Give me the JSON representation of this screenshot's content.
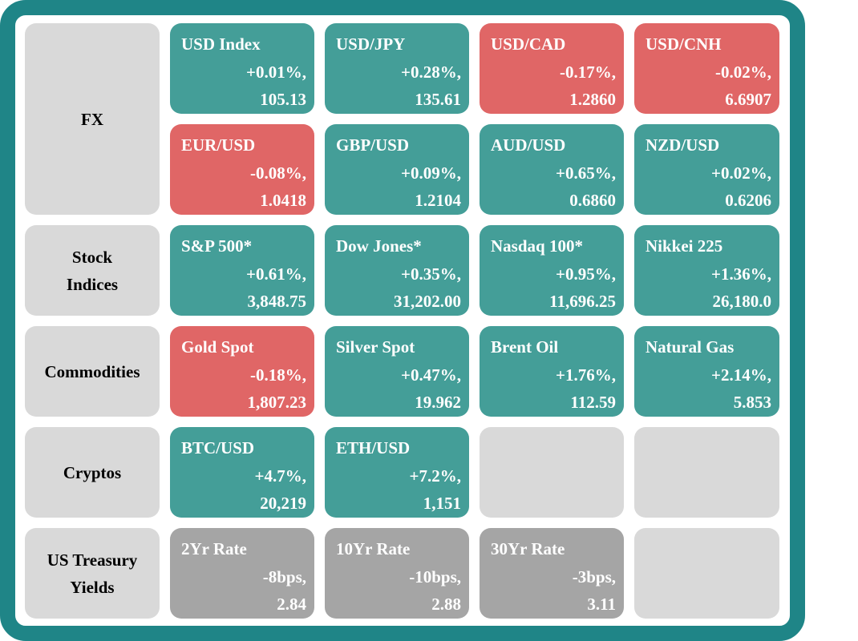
{
  "colors": {
    "frame": "#1f8587",
    "positive": "#449e98",
    "negative": "#e06666",
    "neutral": "#a5a5a5",
    "label_bg": "#d9d9d9"
  },
  "rows": [
    {
      "label_lines": [
        "FX"
      ]
    },
    {
      "label_lines": [
        "Stock",
        "Indices"
      ]
    },
    {
      "label_lines": [
        "Commodities"
      ]
    },
    {
      "label_lines": [
        "Cryptos"
      ]
    },
    {
      "label_lines": [
        "US Treasury",
        "Yields"
      ]
    }
  ],
  "tiles": {
    "usd_index": {
      "name": "USD Index",
      "change": "+0.01%,",
      "value": "105.13"
    },
    "usd_jpy": {
      "name": "USD/JPY",
      "change": "+0.28%,",
      "value": "135.61"
    },
    "usd_cad": {
      "name": "USD/CAD",
      "change": "-0.17%,",
      "value": "1.2860"
    },
    "usd_cnh": {
      "name": "USD/CNH",
      "change": "-0.02%,",
      "value": "6.6907"
    },
    "eur_usd": {
      "name": "EUR/USD",
      "change": "-0.08%,",
      "value": "1.0418"
    },
    "gbp_usd": {
      "name": "GBP/USD",
      "change": "+0.09%,",
      "value": "1.2104"
    },
    "aud_usd": {
      "name": "AUD/USD",
      "change": "+0.65%,",
      "value": "0.6860"
    },
    "nzd_usd": {
      "name": "NZD/USD",
      "change": "+0.02%,",
      "value": "0.6206"
    },
    "sp500": {
      "name": "S&P 500*",
      "change": "+0.61%,",
      "value": "3,848.75"
    },
    "dow": {
      "name": "Dow Jones*",
      "change": "+0.35%,",
      "value": "31,202.00"
    },
    "nasdaq": {
      "name": "Nasdaq 100*",
      "change": "+0.95%,",
      "value": "11,696.25"
    },
    "nikkei": {
      "name": "Nikkei 225",
      "change": "+1.36%,",
      "value": "26,180.0"
    },
    "gold": {
      "name": "Gold Spot",
      "change": "-0.18%,",
      "value": "1,807.23"
    },
    "silver": {
      "name": "Silver Spot",
      "change": "+0.47%,",
      "value": "19.962"
    },
    "brent": {
      "name": "Brent Oil",
      "change": "+1.76%,",
      "value": "112.59"
    },
    "natgas": {
      "name": "Natural Gas",
      "change": "+2.14%,",
      "value": "5.853"
    },
    "btc": {
      "name": "BTC/USD",
      "change": "+4.7%,",
      "value": "20,219"
    },
    "eth": {
      "name": "ETH/USD",
      "change": "+7.2%,",
      "value": "1,151"
    },
    "y2": {
      "name": "2Yr Rate",
      "change": "-8bps,",
      "value": "2.84"
    },
    "y10": {
      "name": "10Yr Rate",
      "change": "-10bps,",
      "value": "2.88"
    },
    "y30": {
      "name": "30Yr Rate",
      "change": "-3bps,",
      "value": "3.11"
    }
  }
}
